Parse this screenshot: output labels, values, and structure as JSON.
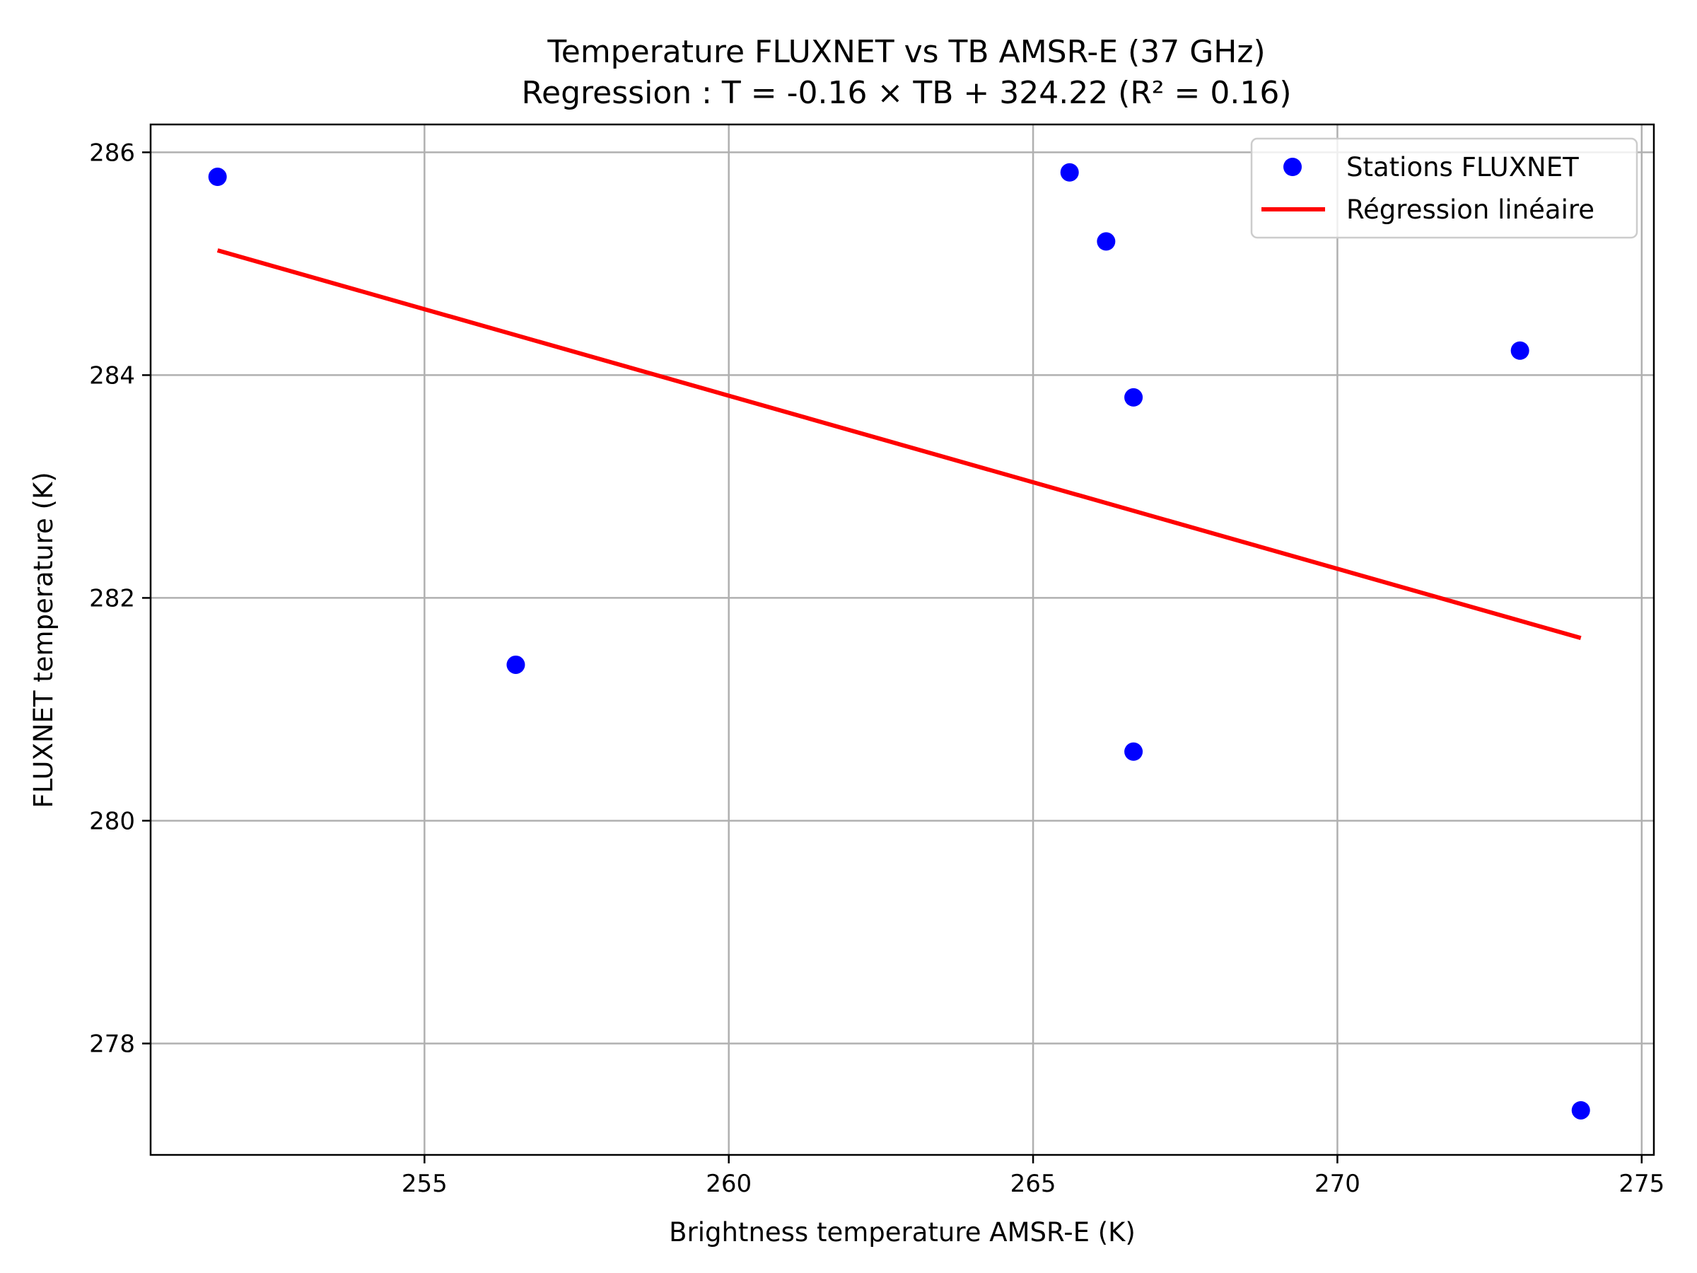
{
  "chart_data": {
    "type": "scatter",
    "title_line1": "Temperature FLUXNET vs TB AMSR-E (37 GHz)",
    "title_line2": "Regression : T = -0.16 × TB + 324.22 (R² = 0.16)",
    "xlabel": "Brightness temperature AMSR-E (K)",
    "ylabel": "FLUXNET temperature (K)",
    "xlim": [
      250.5,
      275.2
    ],
    "ylim": [
      277.0,
      286.25
    ],
    "xticks": [
      255,
      260,
      265,
      270,
      275
    ],
    "yticks": [
      278,
      280,
      282,
      284,
      286
    ],
    "grid": true,
    "legend_position": "top-right",
    "colors": {
      "points": "#0000ff",
      "regression": "#ff0000",
      "grid": "#b0b0b0"
    },
    "series": [
      {
        "name": "Stations FLUXNET",
        "kind": "scatter",
        "points": [
          {
            "x": 251.6,
            "y": 285.78
          },
          {
            "x": 256.5,
            "y": 281.4
          },
          {
            "x": 265.6,
            "y": 285.82
          },
          {
            "x": 266.2,
            "y": 285.2
          },
          {
            "x": 266.65,
            "y": 283.8
          },
          {
            "x": 266.65,
            "y": 280.62
          },
          {
            "x": 273.0,
            "y": 284.22
          },
          {
            "x": 274.0,
            "y": 277.4
          }
        ]
      },
      {
        "name": "Régression linéaire",
        "kind": "line",
        "points": [
          {
            "x": 251.6,
            "y": 285.12
          },
          {
            "x": 274.0,
            "y": 281.64
          }
        ]
      }
    ]
  }
}
